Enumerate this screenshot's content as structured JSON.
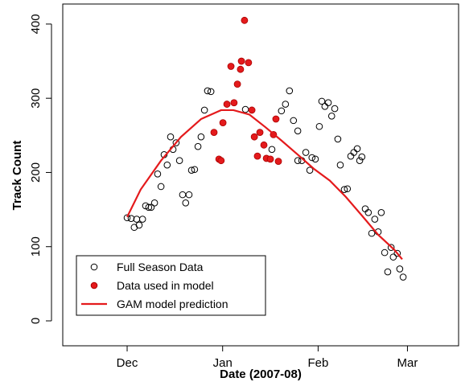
{
  "chart_data": {
    "type": "scatter",
    "x_label": "Date (2007-08)",
    "y_label": "Track Count",
    "xlim": [
      -20.9,
      107.6
    ],
    "ylim": [
      -33.6,
      427
    ],
    "xticks": [
      {
        "value": 0,
        "label": "Dec"
      },
      {
        "value": 31,
        "label": "Jan"
      },
      {
        "value": 62,
        "label": "Feb"
      },
      {
        "value": 91,
        "label": "Mar"
      }
    ],
    "yticks": [
      0,
      100,
      200,
      300,
      400
    ],
    "legend": "bottom-left",
    "series": [
      {
        "name": "Full Season Data",
        "color": "#000000",
        "marker": "open-circle",
        "x": [
          0,
          1.3,
          2.3,
          3.1,
          3.9,
          5,
          6,
          7,
          7.8,
          8.9,
          9.9,
          11,
          12,
          13,
          14.1,
          14.9,
          15.9,
          17,
          18,
          19,
          20.1,
          20.9,
          21.9,
          23,
          24,
          25.1,
          26.1,
          27.2,
          38.4,
          47,
          50.1,
          51.4,
          52.7,
          54,
          55.4,
          55.4,
          56.7,
          58,
          59.3,
          60,
          61.1,
          62.4,
          63.2,
          64.2,
          65.3,
          66.4,
          67.4,
          68.4,
          69.2,
          70.5,
          71.5,
          72.6,
          73.6,
          74.7,
          75.5,
          76.2,
          77.3,
          78.3,
          79.4,
          80.4,
          81.5,
          82.5,
          83.6,
          84.6,
          85.7,
          86.4,
          87.7,
          88.5,
          89.6
        ],
        "values": [
          139,
          138,
          126,
          137,
          129,
          137,
          155,
          153,
          153,
          159,
          198,
          181,
          224,
          210,
          248,
          231,
          240,
          216,
          170,
          159,
          170,
          203,
          204,
          235,
          248,
          284,
          310,
          309,
          285,
          231,
          283,
          292,
          310,
          270,
          256,
          216,
          216,
          227,
          203,
          220,
          218,
          262,
          296,
          289,
          294,
          276,
          286,
          245,
          210,
          177,
          178,
          222,
          227,
          232,
          216,
          221,
          151,
          146,
          118,
          137,
          120,
          146,
          92,
          66,
          99,
          86,
          91,
          70,
          59
        ]
      },
      {
        "name": "Data used in model",
        "color": "#e41a1c",
        "marker": "filled-circle",
        "x": [
          28.2,
          29.8,
          30.5,
          31.1,
          32.4,
          33.7,
          34.7,
          35.8,
          36.8,
          37.1,
          38.1,
          39.4,
          40.5,
          41.3,
          42.3,
          43.1,
          44.4,
          45.2,
          46.5,
          47.5,
          48.3,
          49.1
        ],
        "values": [
          254,
          218,
          216,
          267,
          292,
          343,
          294,
          319,
          339,
          350,
          405,
          348,
          284,
          248,
          222,
          254,
          237,
          219,
          218,
          251,
          272,
          215
        ]
      },
      {
        "name": "GAM model prediction",
        "color": "#e41a1c",
        "marker": "line",
        "x": [
          0,
          4.4,
          11,
          17.5,
          24,
          30.5,
          34.5,
          39.7,
          44.9,
          50.1,
          55.4,
          60.6,
          65.8,
          71,
          76.2,
          81.5,
          86.7,
          89.3
        ],
        "values": [
          140,
          177,
          216,
          248,
          272,
          284,
          284,
          278,
          261,
          243,
          224,
          205,
          189,
          167,
          142,
          116,
          96,
          83
        ]
      }
    ]
  }
}
